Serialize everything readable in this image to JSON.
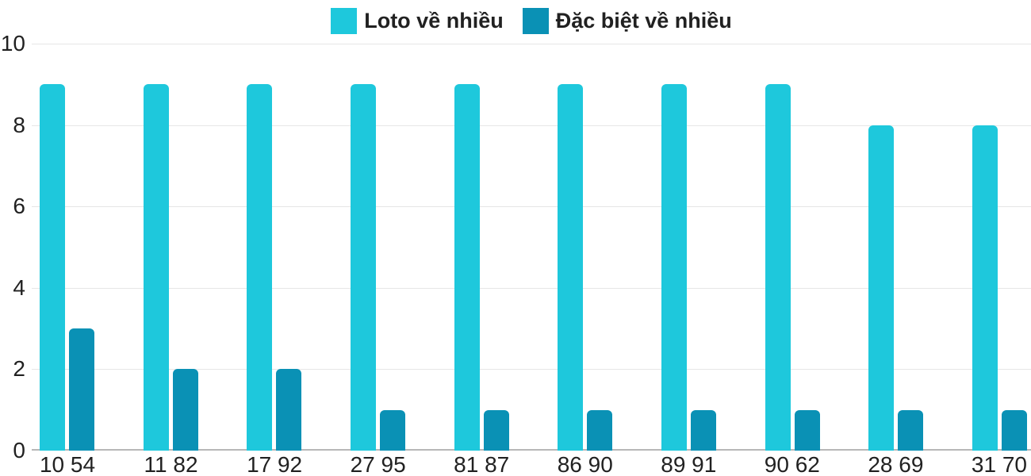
{
  "chart_data": {
    "type": "bar",
    "title": "",
    "categories": [
      "10 54",
      "11 82",
      "17 92",
      "27 95",
      "81 87",
      "86 90",
      "89 91",
      "90 62",
      "28 69",
      "31 70"
    ],
    "series": [
      {
        "name": "Loto về nhiều",
        "color": "#1EC8DC",
        "values": [
          9,
          9,
          9,
          9,
          9,
          9,
          9,
          9,
          8,
          8
        ]
      },
      {
        "name": "Đặc biệt về nhiều",
        "color": "#0A91B5",
        "values": [
          3,
          2,
          2,
          1,
          1,
          1,
          1,
          1,
          1,
          1
        ]
      }
    ],
    "xlabel": "",
    "ylabel": "",
    "ylim": [
      0,
      10
    ],
    "yticks": [
      0,
      2,
      4,
      6,
      8,
      10
    ],
    "grid": true,
    "legend_position": "top-center"
  },
  "colors": {
    "background": "#FFFFFF",
    "grid_line": "#E6E6E6",
    "baseline": "#B7B7B7",
    "text": "#212121"
  }
}
